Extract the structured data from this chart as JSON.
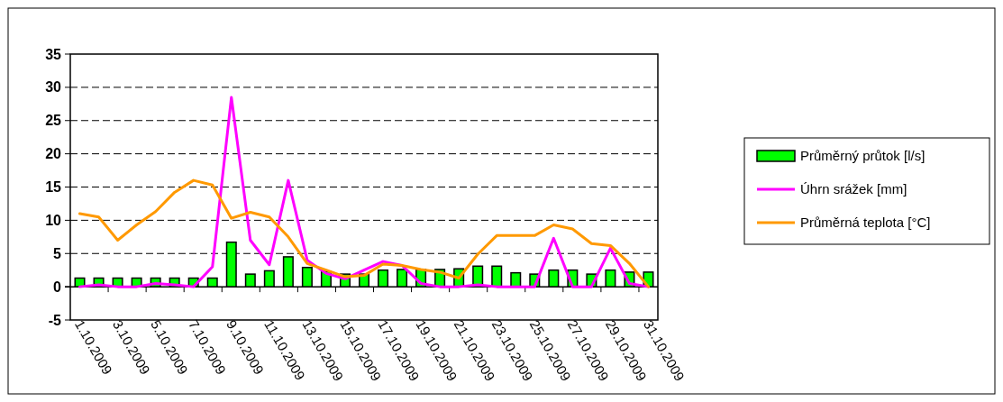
{
  "chart_data": {
    "type": "bar",
    "categories": [
      "1.10.2009",
      null,
      "3.10.2009",
      null,
      "5.10.2009",
      null,
      "7.10.2009",
      null,
      "9.10.2009",
      null,
      "11.10.2009",
      null,
      "13.10.2009",
      null,
      "15.10.2009",
      null,
      "17.10.2009",
      null,
      "19.10.2009",
      null,
      "21.10.2009",
      null,
      "23.10.2009",
      null,
      "25.10.2009",
      null,
      "27.10.2009",
      null,
      "29.10.2009",
      null,
      "31.10.2009"
    ],
    "series": [
      {
        "name": "Průměrný průtok [l/s]",
        "color": "#00ff00",
        "values": [
          1.3,
          1.3,
          1.3,
          1.3,
          1.3,
          1.3,
          1.3,
          1.3,
          6.7,
          1.9,
          2.4,
          4.5,
          2.9,
          2.3,
          1.9,
          1.9,
          2.5,
          2.6,
          2.6,
          2.6,
          2.7,
          3.1,
          3.1,
          2.1,
          1.9,
          2.5,
          2.5,
          1.9,
          2.5,
          2.2,
          2.2
        ]
      },
      {
        "name": "Úhrn srážek [mm]",
        "type": "line",
        "color": "#ff00ff",
        "values": [
          0,
          0.3,
          0,
          0,
          0.5,
          0.3,
          0,
          3,
          28.5,
          7,
          3.3,
          16,
          4,
          2,
          1.2,
          2.5,
          3.8,
          3.2,
          0.5,
          0,
          0,
          0.3,
          0,
          0,
          0,
          7.3,
          0,
          0,
          5.8,
          0.5,
          0
        ]
      },
      {
        "name": "Průměrná teplota [°C]",
        "type": "line",
        "color": "#ff9900",
        "values": [
          11,
          10.5,
          7,
          9.3,
          11.3,
          14.2,
          16,
          15.3,
          10.3,
          11.2,
          10.5,
          7.5,
          3.5,
          2.5,
          1.5,
          1.7,
          3.4,
          3.2,
          2.6,
          2.2,
          1.3,
          4.9,
          7.7,
          7.7,
          7.7,
          9.3,
          8.7,
          6.5,
          6.2,
          3.5,
          0
        ]
      }
    ],
    "ylim": [
      -5,
      35
    ],
    "yticks": [
      -5,
      0,
      5,
      10,
      15,
      20,
      25,
      30,
      35
    ],
    "grid": "y",
    "legend": "right"
  }
}
